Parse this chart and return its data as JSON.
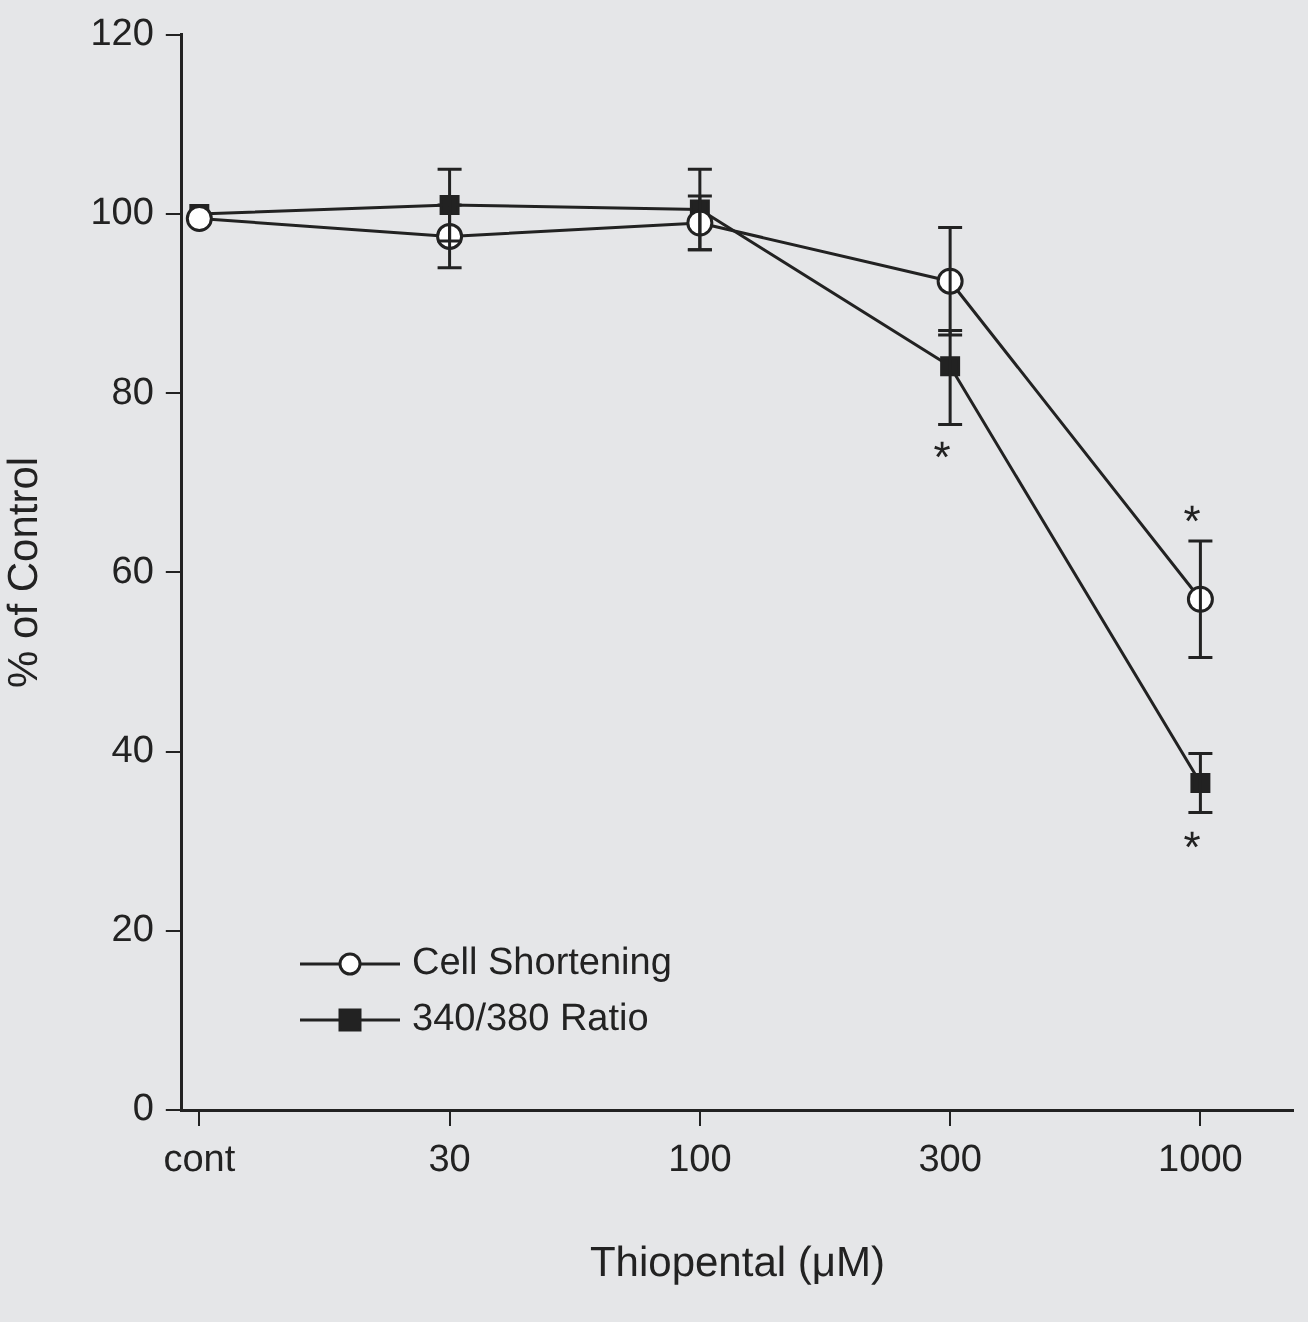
{
  "chart_data": {
    "type": "line",
    "xlabel": "Thiopental (μM)",
    "ylabel": "% of Control",
    "categories": [
      "cont",
      "30",
      "100",
      "300",
      "1000"
    ],
    "ylim": [
      0,
      120
    ],
    "yticks": [
      0,
      20,
      40,
      60,
      80,
      100,
      120
    ],
    "grid": false,
    "legend": "bottom left",
    "line_style": "solid",
    "series": [
      {
        "name": "Cell Shortening",
        "color": "#222222",
        "marker": "circle",
        "values": [
          99.5,
          97.5,
          99,
          92.5,
          57
        ],
        "errors": [
          null,
          3.5,
          3,
          6,
          6.5
        ]
      },
      {
        "name": "340/380 Ratio",
        "color": "#222222",
        "marker": "square",
        "values": [
          100,
          101,
          100.5,
          83,
          36.5
        ],
        "errors": [
          null,
          4,
          4.5,
          [
            76.5,
            87
          ],
          3.3
        ]
      }
    ],
    "annotations": [
      "*",
      "*",
      "*"
    ]
  }
}
